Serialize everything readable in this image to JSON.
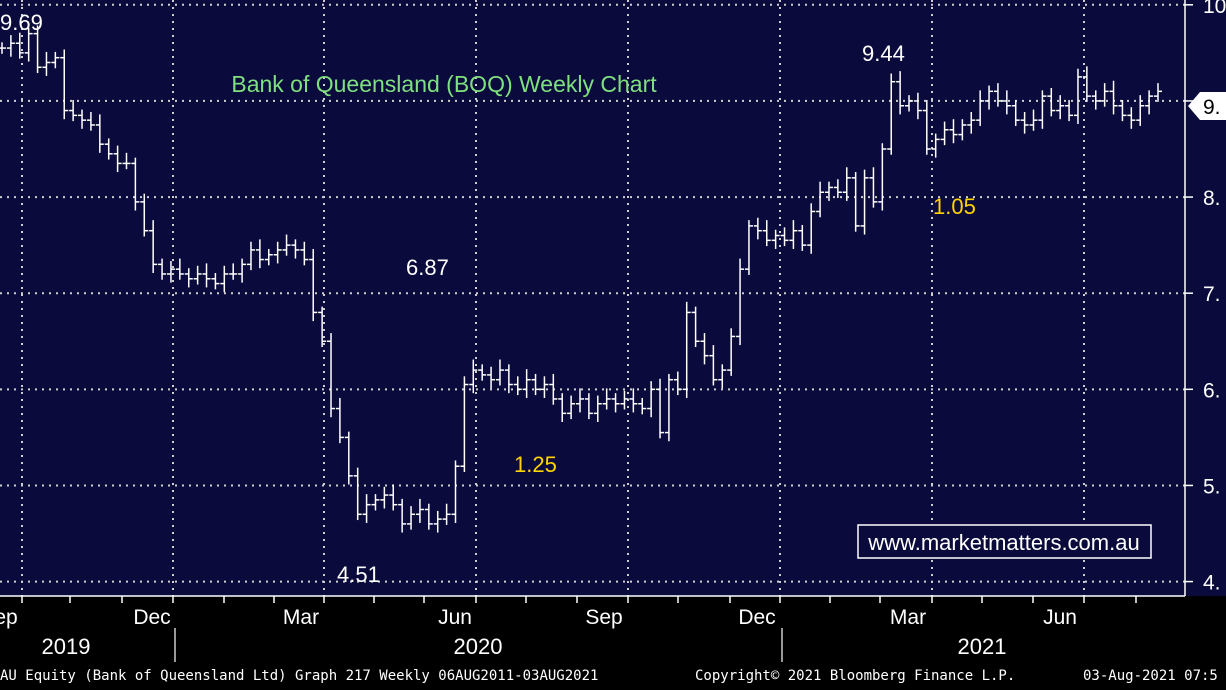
{
  "chart_data": {
    "type": "ohlc",
    "title": "Bank of Queensland (BOQ) Weekly Chart",
    "ylim": [
      3.85,
      10.05
    ],
    "y_ticks": [
      {
        "value": 4,
        "label": "4."
      },
      {
        "value": 5,
        "label": "5."
      },
      {
        "value": 6,
        "label": "6."
      },
      {
        "value": 7,
        "label": "7."
      },
      {
        "value": 8,
        "label": "8."
      },
      {
        "value": 9,
        "label": "9."
      },
      {
        "value": 10,
        "label": "10"
      }
    ],
    "x_month_labels": [
      "ep",
      "Dec",
      "Mar",
      "Jun",
      "Sep",
      "Dec",
      "Mar",
      "Jun"
    ],
    "x_year_labels": [
      "2019",
      "2020",
      "2021"
    ],
    "last_price_label": "9.",
    "annotations": [
      {
        "text": "9.69",
        "color": "#ffffff"
      },
      {
        "text": "6.87",
        "color": "#ffffff"
      },
      {
        "text": "4.51",
        "color": "#ffffff"
      },
      {
        "text": "1.25",
        "color": "#ffd400"
      },
      {
        "text": "9.44",
        "color": "#ffffff"
      },
      {
        "text": "1.05",
        "color": "#ffd400"
      }
    ],
    "watermark": "www.marketmatters.com.au",
    "closes": [
      9.55,
      9.6,
      9.5,
      9.7,
      9.35,
      9.4,
      9.45,
      8.9,
      8.85,
      8.8,
      8.75,
      8.55,
      8.45,
      8.35,
      8.35,
      7.95,
      7.65,
      7.3,
      7.2,
      7.25,
      7.2,
      7.15,
      7.2,
      7.15,
      7.1,
      7.2,
      7.2,
      7.3,
      7.45,
      7.35,
      7.4,
      7.45,
      7.5,
      7.45,
      7.35,
      6.8,
      6.5,
      5.8,
      5.5,
      5.1,
      4.7,
      4.8,
      4.85,
      4.9,
      4.8,
      4.6,
      4.7,
      4.75,
      4.6,
      4.65,
      4.7,
      5.2,
      6.05,
      6.2,
      6.15,
      6.1,
      6.2,
      6.05,
      6.0,
      6.1,
      6.0,
      6.05,
      5.9,
      5.75,
      5.85,
      5.9,
      5.75,
      5.85,
      5.9,
      5.85,
      5.9,
      5.85,
      5.8,
      6.0,
      5.55,
      6.1,
      6.0,
      6.8,
      6.5,
      6.35,
      6.1,
      6.2,
      6.55,
      7.25,
      7.7,
      7.65,
      7.55,
      7.6,
      7.55,
      7.65,
      7.5,
      7.85,
      8.05,
      8.1,
      8.05,
      8.2,
      7.7,
      8.2,
      7.95,
      8.5,
      9.2,
      8.95,
      9.0,
      8.9,
      8.5,
      8.6,
      8.7,
      8.65,
      8.75,
      8.8,
      9.0,
      9.1,
      9.0,
      8.95,
      8.8,
      8.75,
      8.8,
      9.05,
      8.9,
      8.95,
      8.85,
      9.25,
      9.05,
      9.0,
      9.1,
      8.95,
      8.85,
      8.8,
      8.95,
      9.05,
      9.1
    ],
    "weeks_count": 131
  }
}
